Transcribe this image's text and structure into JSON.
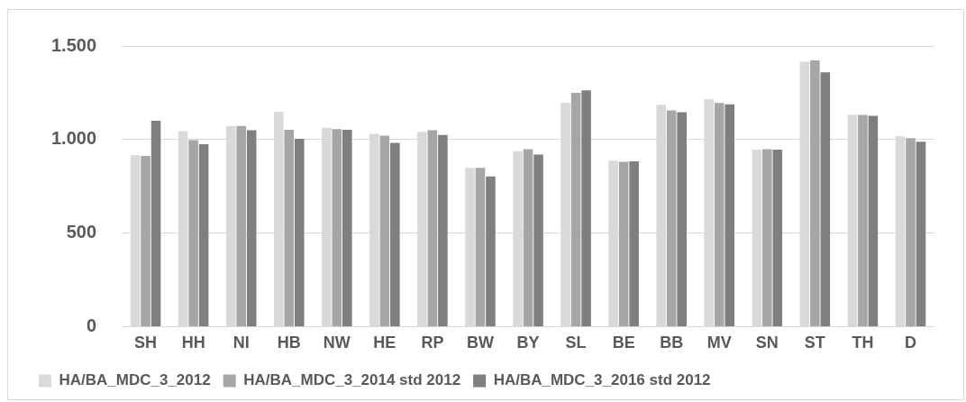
{
  "chart_data": {
    "type": "bar",
    "categories": [
      "SH",
      "HH",
      "NI",
      "HB",
      "NW",
      "HE",
      "RP",
      "BW",
      "BY",
      "SL",
      "BE",
      "BB",
      "MV",
      "SN",
      "ST",
      "TH",
      "D"
    ],
    "series": [
      {
        "name": "HA/BA_MDC_3_2012",
        "color": "#d9d9d9",
        "values": [
          916,
          1045,
          1072,
          1148,
          1063,
          1030,
          1041,
          849,
          938,
          1197,
          887,
          1186,
          1214,
          946,
          1416,
          1133,
          1017
        ]
      },
      {
        "name": "HA/BA_MDC_3_2014 std 2012",
        "color": "#a6a6a6",
        "values": [
          912,
          997,
          1072,
          1052,
          1056,
          1021,
          1050,
          849,
          949,
          1250,
          881,
          1155,
          1195,
          949,
          1423,
          1131,
          1008
        ]
      },
      {
        "name": "HA/BA_MDC_3_2016 std 2012",
        "color": "#7f7f7f",
        "values": [
          1100,
          975,
          1050,
          1004,
          1052,
          982,
          1024,
          803,
          920,
          1263,
          883,
          1146,
          1188,
          946,
          1359,
          1127,
          988
        ]
      }
    ],
    "ylim": [
      0,
      1500
    ],
    "yticks": [
      0,
      {
        "value": 500,
        "label": "500"
      },
      {
        "value": 1000,
        "label": "1.000"
      },
      {
        "value": 1500,
        "label": "1.500"
      }
    ],
    "grid": "y",
    "legend": "bottom"
  }
}
